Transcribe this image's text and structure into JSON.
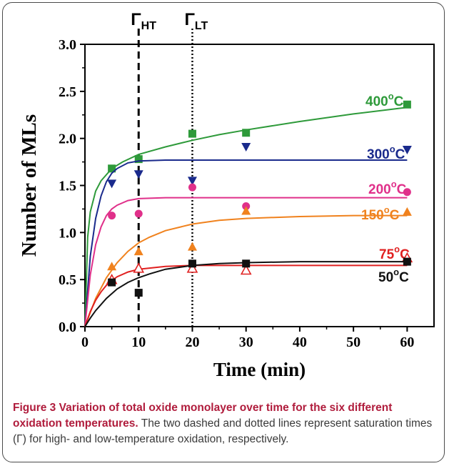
{
  "chart_data": {
    "type": "scatter",
    "xlabel": "Time (min)",
    "ylabel": "Number of MLs",
    "xlim": [
      0,
      65
    ],
    "ylim": [
      0,
      3.0
    ],
    "x_ticks": [
      "0",
      "10",
      "20",
      "30",
      "40",
      "50",
      "60"
    ],
    "y_ticks": [
      "0.0",
      "0.5",
      "1.0",
      "1.5",
      "2.0",
      "2.5",
      "3.0"
    ],
    "vertical_lines": [
      {
        "x": 10,
        "style": "dashed",
        "label_main": "Γ",
        "label_sub": "HT"
      },
      {
        "x": 20,
        "style": "dotted",
        "label_main": "Γ",
        "label_sub": "LT"
      }
    ],
    "series": [
      {
        "name": "400°C",
        "label_main": "400",
        "color": "#2e9a3a",
        "marker": "square",
        "x": [
          5,
          10,
          20,
          30,
          60
        ],
        "y": [
          1.68,
          1.78,
          2.05,
          2.06,
          2.36
        ],
        "fit_x": [
          0,
          0.5,
          1,
          2,
          3,
          5,
          7,
          10,
          15,
          20,
          25,
          30,
          40,
          50,
          60
        ],
        "fit_y": [
          0,
          0.95,
          1.22,
          1.44,
          1.55,
          1.68,
          1.75,
          1.83,
          1.91,
          1.98,
          2.04,
          2.09,
          2.18,
          2.26,
          2.33
        ]
      },
      {
        "name": "300°C",
        "label_main": "300",
        "color": "#1a2a8c",
        "marker": "triangle-down",
        "x": [
          5,
          10,
          20,
          30,
          60
        ],
        "y": [
          1.52,
          1.62,
          1.55,
          1.91,
          1.88
        ],
        "fit_x": [
          0,
          1,
          2,
          3,
          4,
          5,
          6,
          8,
          10,
          15,
          20,
          30,
          40,
          50,
          60
        ],
        "fit_y": [
          0,
          0.75,
          1.15,
          1.39,
          1.54,
          1.63,
          1.68,
          1.74,
          1.76,
          1.77,
          1.77,
          1.77,
          1.77,
          1.77,
          1.77
        ]
      },
      {
        "name": "200°C",
        "label_main": "200",
        "color": "#e0308a",
        "marker": "circle",
        "x": [
          5,
          10,
          20,
          30,
          60
        ],
        "y": [
          1.18,
          1.2,
          1.48,
          1.28,
          1.43
        ],
        "fit_x": [
          0,
          1,
          2,
          3,
          4,
          5,
          6,
          8,
          10,
          15,
          20,
          30,
          40,
          50,
          60
        ],
        "fit_y": [
          0,
          0.55,
          0.87,
          1.06,
          1.18,
          1.25,
          1.29,
          1.34,
          1.36,
          1.37,
          1.37,
          1.37,
          1.37,
          1.37,
          1.37
        ]
      },
      {
        "name": "150°C",
        "label_main": "150",
        "color": "#f0821e",
        "marker": "triangle-up",
        "x": [
          5,
          10,
          20,
          30,
          60
        ],
        "y": [
          0.64,
          0.8,
          0.85,
          1.23,
          1.22
        ],
        "fit_x": [
          0,
          2,
          4,
          6,
          8,
          10,
          12,
          15,
          20,
          25,
          30,
          40,
          50,
          60
        ],
        "fit_y": [
          0,
          0.3,
          0.52,
          0.68,
          0.8,
          0.89,
          0.95,
          1.02,
          1.09,
          1.13,
          1.15,
          1.17,
          1.18,
          1.18
        ]
      },
      {
        "name": "75°C",
        "label_main": "75",
        "color": "#e02020",
        "marker": "triangle-up-open",
        "x": [
          5,
          10,
          20,
          30,
          60
        ],
        "y": [
          0.5,
          0.62,
          0.62,
          0.6,
          0.73
        ],
        "fit_x": [
          0,
          1,
          2,
          3,
          4,
          5,
          6,
          8,
          10,
          15,
          20,
          30,
          40,
          50,
          60
        ],
        "fit_y": [
          0,
          0.16,
          0.28,
          0.37,
          0.44,
          0.49,
          0.53,
          0.58,
          0.61,
          0.64,
          0.65,
          0.65,
          0.65,
          0.65,
          0.65
        ]
      },
      {
        "name": "50°C",
        "label_main": "50",
        "color": "#111111",
        "marker": "square",
        "x": [
          5,
          10,
          20,
          30,
          60
        ],
        "y": [
          0.47,
          0.36,
          0.67,
          0.67,
          0.69
        ],
        "fit_x": [
          0,
          1,
          2,
          4,
          6,
          8,
          10,
          12,
          15,
          20,
          25,
          30,
          40,
          50,
          60
        ],
        "fit_y": [
          0,
          0.09,
          0.17,
          0.3,
          0.4,
          0.47,
          0.52,
          0.56,
          0.61,
          0.65,
          0.67,
          0.68,
          0.69,
          0.69,
          0.69
        ]
      }
    ]
  },
  "caption": {
    "title": "Figure 3 Variation of total oxide monolayer over time for the six different oxidation temperatures.",
    "body": " The two dashed and dotted lines represent saturation times (Γ) for high- and low-temperature oxidation, respectively."
  }
}
